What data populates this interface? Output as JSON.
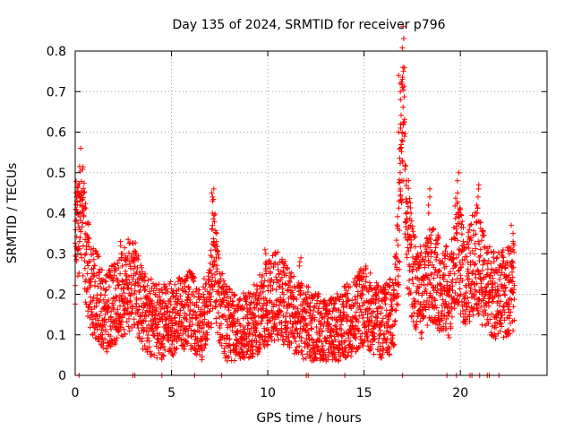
{
  "chart_data": {
    "type": "scatter",
    "title": "Day 135 of 2024, SRMTID for receiver p796",
    "xlabel": "GPS time / hours",
    "ylabel": "SRMTID / TECUs",
    "xlim": [
      0,
      24.5
    ],
    "ylim": [
      0,
      0.8
    ],
    "grid": true,
    "x_ticks": [
      {
        "value": 0,
        "label": "0"
      },
      {
        "value": 5,
        "label": "5"
      },
      {
        "value": 10,
        "label": "10"
      },
      {
        "value": 15,
        "label": "15"
      },
      {
        "value": 20,
        "label": "20"
      }
    ],
    "y_ticks": [
      {
        "value": 0,
        "label": "0"
      },
      {
        "value": 0.1,
        "label": "0.1"
      },
      {
        "value": 0.2,
        "label": "0.2"
      },
      {
        "value": 0.3,
        "label": "0.3"
      },
      {
        "value": 0.4,
        "label": "0.4"
      },
      {
        "value": 0.5,
        "label": "0.5"
      },
      {
        "value": 0.6,
        "label": "0.6"
      },
      {
        "value": 0.7,
        "label": "0.7"
      },
      {
        "value": 0.8,
        "label": "0.8"
      }
    ],
    "marker": "+",
    "color": "#ff0000",
    "series": [
      {
        "name": "SRMTID",
        "profile": [
          {
            "x": 0.0,
            "y": 0.27
          },
          {
            "x": 0.05,
            "y": 0.45
          },
          {
            "x": 0.15,
            "y": 0.38
          },
          {
            "x": 0.3,
            "y": 0.43
          },
          {
            "x": 0.5,
            "y": 0.33
          },
          {
            "x": 0.8,
            "y": 0.22
          },
          {
            "x": 1.2,
            "y": 0.19
          },
          {
            "x": 1.6,
            "y": 0.15
          },
          {
            "x": 2.0,
            "y": 0.18
          },
          {
            "x": 2.5,
            "y": 0.2
          },
          {
            "x": 3.0,
            "y": 0.24
          },
          {
            "x": 3.5,
            "y": 0.16
          },
          {
            "x": 4.0,
            "y": 0.14
          },
          {
            "x": 4.5,
            "y": 0.13
          },
          {
            "x": 5.0,
            "y": 0.14
          },
          {
            "x": 5.5,
            "y": 0.15
          },
          {
            "x": 6.0,
            "y": 0.16
          },
          {
            "x": 6.5,
            "y": 0.12
          },
          {
            "x": 7.0,
            "y": 0.18
          },
          {
            "x": 7.2,
            "y": 0.32
          },
          {
            "x": 7.4,
            "y": 0.2
          },
          {
            "x": 7.8,
            "y": 0.13
          },
          {
            "x": 8.5,
            "y": 0.11
          },
          {
            "x": 9.0,
            "y": 0.12
          },
          {
            "x": 9.5,
            "y": 0.15
          },
          {
            "x": 10.0,
            "y": 0.18
          },
          {
            "x": 10.5,
            "y": 0.2
          },
          {
            "x": 11.0,
            "y": 0.17
          },
          {
            "x": 11.5,
            "y": 0.14
          },
          {
            "x": 12.0,
            "y": 0.13
          },
          {
            "x": 12.5,
            "y": 0.12
          },
          {
            "x": 13.0,
            "y": 0.1
          },
          {
            "x": 13.5,
            "y": 0.11
          },
          {
            "x": 14.0,
            "y": 0.13
          },
          {
            "x": 14.5,
            "y": 0.15
          },
          {
            "x": 15.0,
            "y": 0.18
          },
          {
            "x": 15.5,
            "y": 0.14
          },
          {
            "x": 16.0,
            "y": 0.13
          },
          {
            "x": 16.5,
            "y": 0.15
          },
          {
            "x": 16.8,
            "y": 0.3
          },
          {
            "x": 16.95,
            "y": 0.6
          },
          {
            "x": 17.05,
            "y": 0.68
          },
          {
            "x": 17.2,
            "y": 0.38
          },
          {
            "x": 17.5,
            "y": 0.25
          },
          {
            "x": 18.0,
            "y": 0.2
          },
          {
            "x": 18.5,
            "y": 0.25
          },
          {
            "x": 19.0,
            "y": 0.22
          },
          {
            "x": 19.5,
            "y": 0.2
          },
          {
            "x": 19.8,
            "y": 0.32
          },
          {
            "x": 20.3,
            "y": 0.22
          },
          {
            "x": 20.8,
            "y": 0.3
          },
          {
            "x": 21.3,
            "y": 0.22
          },
          {
            "x": 21.8,
            "y": 0.2
          },
          {
            "x": 22.3,
            "y": 0.2
          },
          {
            "x": 22.8,
            "y": 0.22
          }
        ],
        "spikes": [
          {
            "x": 0.05,
            "values": [
              0.45,
              0.44,
              0.43,
              0.42,
              0.41,
              0.4,
              0.38
            ]
          },
          {
            "x": 0.3,
            "values": [
              0.43,
              0.42,
              0.4,
              0.36,
              0.34
            ]
          },
          {
            "x": 2.4,
            "values": [
              0.33,
              0.32,
              0.3
            ]
          },
          {
            "x": 7.15,
            "values": [
              0.46,
              0.45,
              0.44,
              0.43,
              0.4,
              0.37
            ]
          },
          {
            "x": 7.3,
            "values": [
              0.35,
              0.33,
              0.31,
              0.29
            ]
          },
          {
            "x": 9.9,
            "values": [
              0.31,
              0.3,
              0.28
            ]
          },
          {
            "x": 11.7,
            "values": [
              0.29,
              0.28,
              0.27
            ]
          },
          {
            "x": 16.85,
            "values": [
              0.74,
              0.72,
              0.7,
              0.68,
              0.62,
              0.6,
              0.56,
              0.5,
              0.46
            ]
          },
          {
            "x": 17.0,
            "values": [
              0.76,
              0.75,
              0.73,
              0.71,
              0.6,
              0.53,
              0.48
            ]
          },
          {
            "x": 17.2,
            "values": [
              0.4,
              0.38,
              0.36,
              0.34
            ]
          },
          {
            "x": 18.4,
            "values": [
              0.46,
              0.44,
              0.42,
              0.4
            ]
          },
          {
            "x": 19.9,
            "values": [
              0.5,
              0.48,
              0.45,
              0.4,
              0.39
            ]
          },
          {
            "x": 20.9,
            "values": [
              0.47,
              0.46,
              0.44,
              0.42,
              0.4,
              0.38
            ]
          },
          {
            "x": 22.7,
            "values": [
              0.37,
              0.35,
              0.33,
              0.31
            ]
          }
        ],
        "zero_points_x": [
          0.2,
          3.0,
          3.1,
          4.5,
          6.2,
          7.6,
          12.0,
          12.1,
          14.0,
          17.0,
          19.3,
          19.8,
          20.5,
          20.6,
          21.0,
          21.4,
          21.5,
          22.0
        ]
      }
    ]
  }
}
